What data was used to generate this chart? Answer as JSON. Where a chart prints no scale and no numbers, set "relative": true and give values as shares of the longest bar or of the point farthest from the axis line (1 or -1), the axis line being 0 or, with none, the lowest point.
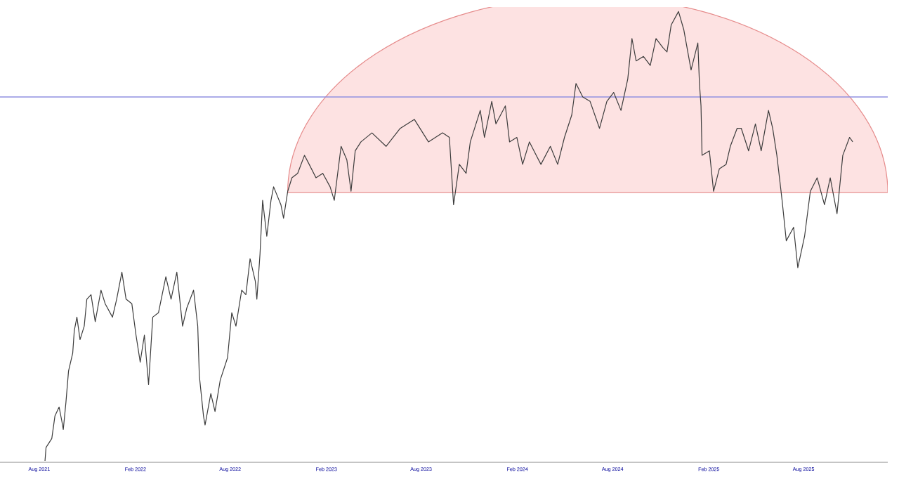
{
  "chart_data": {
    "type": "line",
    "relative": true,
    "color": "#3c3c3c",
    "xlim": [
      "2021-05-18",
      "2026-01-09"
    ],
    "xticks": [
      {
        "value": "2021-08-01",
        "label": "Aug 2021"
      },
      {
        "value": "2022-02-01",
        "label": "Feb 2022"
      },
      {
        "value": "2022-08-01",
        "label": "Aug 2022"
      },
      {
        "value": "2023-02-01",
        "label": "Feb 2023"
      },
      {
        "value": "2023-08-01",
        "label": "Aug 2023"
      },
      {
        "value": "2024-02-01",
        "label": "Feb 2024"
      },
      {
        "value": "2024-08-01",
        "label": "Aug 2024"
      },
      {
        "value": "2025-02-01",
        "label": "Feb 2025"
      },
      {
        "value": "2025-08-01",
        "label": "Aug 2025"
      }
    ],
    "x": [
      "2021-08-12",
      "2021-08-14",
      "2021-08-25",
      "2021-08-31",
      "2021-09-08",
      "2021-09-13",
      "2021-09-16",
      "2021-09-21",
      "2021-09-26",
      "2021-10-04",
      "2021-10-07",
      "2021-10-12",
      "2021-10-18",
      "2021-10-26",
      "2021-10-31",
      "2021-11-08",
      "2021-11-16",
      "2021-11-27",
      "2021-12-05",
      "2021-12-19",
      "2021-12-27",
      "2022-01-06",
      "2022-01-14",
      "2022-01-25",
      "2022-02-02",
      "2022-02-10",
      "2022-02-18",
      "2022-02-26",
      "2022-03-06",
      "2022-03-17",
      "2022-03-31",
      "2022-04-10",
      "2022-04-21",
      "2022-05-02",
      "2022-05-10",
      "2022-05-23",
      "2022-05-31",
      "2022-06-03",
      "2022-06-11",
      "2022-06-14",
      "2022-06-25",
      "2022-07-03",
      "2022-07-13",
      "2022-07-27",
      "2022-08-04",
      "2022-08-12",
      "2022-08-23",
      "2022-08-31",
      "2022-09-08",
      "2022-09-18",
      "2022-09-21",
      "2022-09-27",
      "2022-10-02",
      "2022-10-10",
      "2022-10-18",
      "2022-10-23",
      "2022-11-06",
      "2022-11-11",
      "2022-11-19",
      "2022-11-27",
      "2022-12-08",
      "2022-12-21",
      "2022-12-30",
      "2023-01-12",
      "2023-01-25",
      "2023-02-08",
      "2023-02-16",
      "2023-03-01",
      "2023-03-12",
      "2023-03-20",
      "2023-03-28",
      "2023-04-08",
      "2023-04-29",
      "2023-05-26",
      "2023-06-22",
      "2023-07-19",
      "2023-08-15",
      "2023-09-11",
      "2023-09-24",
      "2023-10-02",
      "2023-10-13",
      "2023-10-26",
      "2023-11-03",
      "2023-11-22",
      "2023-11-30",
      "2023-12-14",
      "2023-12-22",
      "2024-01-09",
      "2024-01-17",
      "2024-01-31",
      "2024-02-11",
      "2024-02-24",
      "2024-03-08",
      "2024-03-17",
      "2024-04-04",
      "2024-04-18",
      "2024-05-01",
      "2024-05-15",
      "2024-05-23",
      "2024-06-05",
      "2024-06-19",
      "2024-07-07",
      "2024-07-21",
      "2024-08-03",
      "2024-08-17",
      "2024-08-30",
      "2024-09-07",
      "2024-09-15",
      "2024-09-29",
      "2024-10-12",
      "2024-10-23",
      "2024-11-05",
      "2024-11-13",
      "2024-11-21",
      "2024-12-05",
      "2024-12-15",
      "2024-12-29",
      "2025-01-11",
      "2025-01-14",
      "2025-01-17",
      "2025-01-19",
      "2025-02-02",
      "2025-02-10",
      "2025-02-21",
      "2025-03-06",
      "2025-03-14",
      "2025-03-27",
      "2025-04-04",
      "2025-04-18",
      "2025-05-01",
      "2025-05-12",
      "2025-05-26",
      "2025-06-03",
      "2025-06-11",
      "2025-06-21",
      "2025-06-29",
      "2025-07-13",
      "2025-07-21",
      "2025-08-03",
      "2025-08-14",
      "2025-08-27",
      "2025-09-10",
      "2025-09-21",
      "2025-10-04",
      "2025-10-15",
      "2025-10-28",
      "2025-11-03"
    ],
    "values": [
      0.0,
      0.03,
      0.05,
      0.1,
      0.12,
      0.09,
      0.07,
      0.13,
      0.2,
      0.24,
      0.29,
      0.32,
      0.27,
      0.3,
      0.36,
      0.37,
      0.31,
      0.38,
      0.35,
      0.32,
      0.36,
      0.42,
      0.36,
      0.35,
      0.28,
      0.22,
      0.28,
      0.17,
      0.32,
      0.33,
      0.41,
      0.36,
      0.42,
      0.3,
      0.34,
      0.38,
      0.3,
      0.19,
      0.1,
      0.08,
      0.15,
      0.11,
      0.18,
      0.23,
      0.33,
      0.3,
      0.38,
      0.37,
      0.45,
      0.4,
      0.36,
      0.46,
      0.58,
      0.5,
      0.58,
      0.61,
      0.57,
      0.54,
      0.6,
      0.63,
      0.64,
      0.68,
      0.66,
      0.63,
      0.64,
      0.61,
      0.58,
      0.7,
      0.67,
      0.6,
      0.69,
      0.71,
      0.73,
      0.7,
      0.74,
      0.76,
      0.71,
      0.73,
      0.72,
      0.57,
      0.66,
      0.64,
      0.71,
      0.78,
      0.72,
      0.8,
      0.75,
      0.79,
      0.71,
      0.72,
      0.66,
      0.71,
      0.68,
      0.66,
      0.7,
      0.66,
      0.72,
      0.77,
      0.84,
      0.81,
      0.8,
      0.74,
      0.8,
      0.82,
      0.78,
      0.85,
      0.94,
      0.89,
      0.9,
      0.88,
      0.94,
      0.92,
      0.91,
      0.97,
      1.0,
      0.96,
      0.87,
      0.93,
      0.84,
      0.79,
      0.68,
      0.69,
      0.6,
      0.65,
      0.66,
      0.7,
      0.74,
      0.74,
      0.69,
      0.75,
      0.69,
      0.78,
      0.74,
      0.68,
      0.58,
      0.49,
      0.52,
      0.43,
      0.5,
      0.6,
      0.63,
      0.57,
      0.63,
      0.55,
      0.68,
      0.72,
      0.71
    ],
    "ref_lines": [
      {
        "axis": "y",
        "value": 0.81,
        "color": "#9090e0"
      }
    ]
  }
}
